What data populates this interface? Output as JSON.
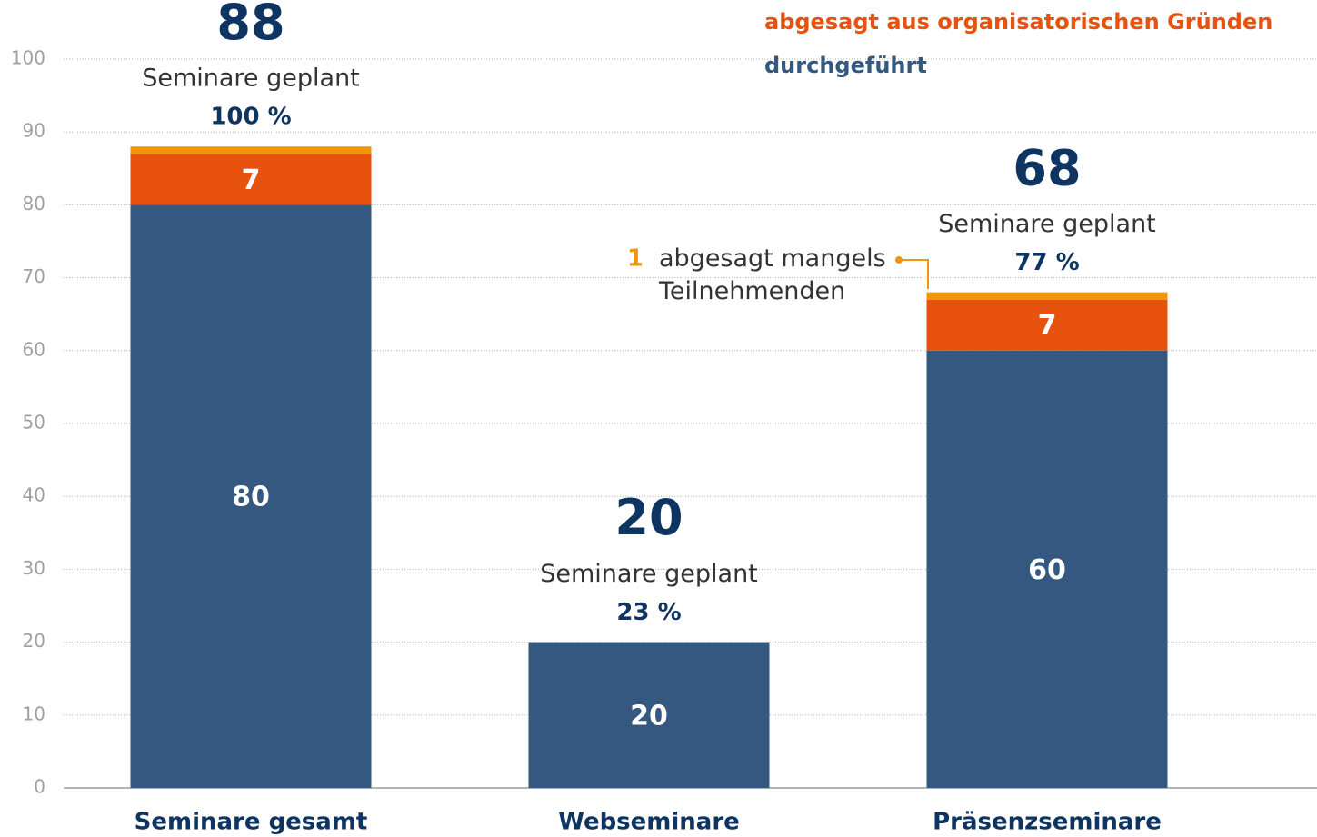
{
  "chart_data": {
    "type": "stacked-bar",
    "categories": [
      "Seminare gesamt",
      "Webseminare",
      "Präsenzseminare"
    ],
    "series": [
      {
        "name": "durchgeführt",
        "color": "#34587f",
        "values": [
          80,
          20,
          60
        ]
      },
      {
        "name": "abgesagt aus organisatorischen Gründen",
        "color": "#e8520f",
        "values": [
          7,
          0,
          7
        ]
      },
      {
        "name": "abgesagt mangels Teilnehmenden",
        "color": "#f0960c",
        "values": [
          1,
          0,
          1
        ]
      }
    ],
    "totals": [
      88,
      20,
      68
    ],
    "total_caption": "Seminare geplant",
    "shares": [
      100,
      23,
      77
    ],
    "share_labels": [
      "100 %",
      "23 %",
      "77 %"
    ],
    "ylim": [
      0,
      100
    ],
    "yticks": [
      0,
      10,
      20,
      30,
      40,
      50,
      60,
      70,
      80,
      90,
      100
    ],
    "grid": true
  }
}
